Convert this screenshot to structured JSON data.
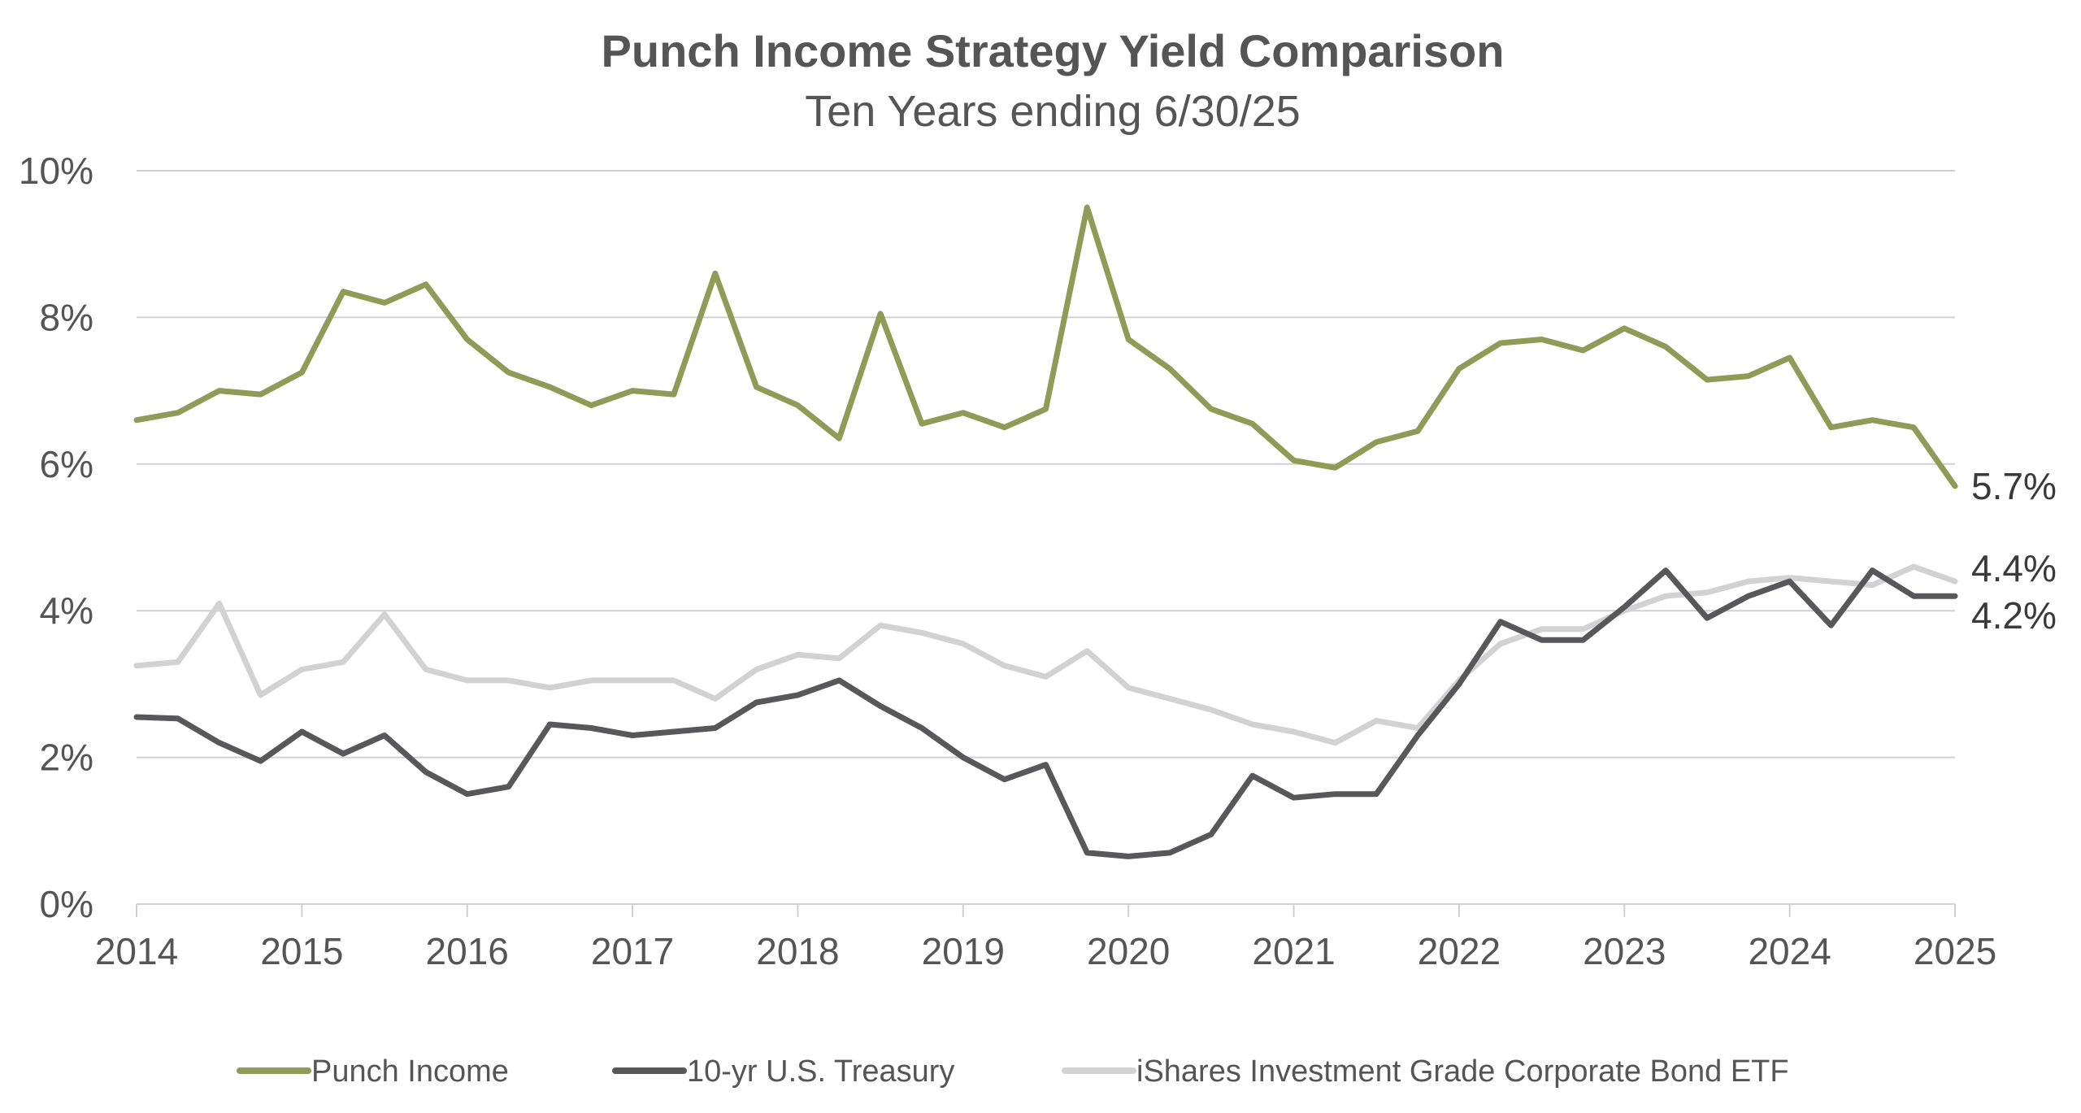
{
  "chart_data": {
    "type": "line",
    "title": "Punch Income Strategy Yield Comparison",
    "subtitle": "Ten Years ending 6/30/25",
    "xlabel": "",
    "ylabel": "",
    "x_ticks": [
      "2014",
      "2015",
      "2016",
      "2017",
      "2018",
      "2019",
      "2020",
      "2021",
      "2022",
      "2023",
      "2024",
      "2025"
    ],
    "y_ticks": [
      "0%",
      "2%",
      "4%",
      "6%",
      "8%",
      "10%"
    ],
    "xlim": [
      2014.0,
      2025.0
    ],
    "ylim": [
      0,
      10
    ],
    "grid": true,
    "legend_position": "bottom",
    "x": [
      2014.0,
      2014.25,
      2014.5,
      2014.75,
      2015.0,
      2015.25,
      2015.5,
      2015.75,
      2016.0,
      2016.25,
      2016.5,
      2016.75,
      2017.0,
      2017.25,
      2017.5,
      2017.75,
      2018.0,
      2018.25,
      2018.5,
      2018.75,
      2019.0,
      2019.25,
      2019.5,
      2019.75,
      2020.0,
      2020.25,
      2020.5,
      2020.75,
      2021.0,
      2021.25,
      2021.5,
      2021.75,
      2022.0,
      2022.25,
      2022.5,
      2022.75,
      2023.0,
      2023.25,
      2023.5,
      2023.75,
      2024.0,
      2024.25,
      2024.5,
      2024.75,
      2025.0
    ],
    "series": [
      {
        "name": "Punch Income",
        "color": "#8f9b57",
        "end_label": "5.7%",
        "values": [
          6.6,
          6.7,
          7.0,
          6.95,
          7.25,
          8.35,
          8.2,
          8.45,
          7.7,
          7.25,
          7.05,
          6.8,
          7.0,
          6.95,
          8.6,
          7.05,
          6.8,
          6.35,
          8.05,
          6.55,
          6.7,
          6.5,
          6.75,
          9.5,
          7.7,
          7.3,
          6.75,
          6.55,
          6.05,
          5.95,
          6.3,
          6.45,
          7.3,
          7.65,
          7.7,
          7.55,
          7.85,
          7.6,
          7.15,
          7.2,
          7.45,
          6.5,
          6.6,
          6.5,
          5.7
        ]
      },
      {
        "name": "10-yr U.S. Treasury",
        "color": "#58585a",
        "end_label": "4.2%",
        "values": [
          2.55,
          2.53,
          2.2,
          1.95,
          2.35,
          2.05,
          2.3,
          1.8,
          1.5,
          1.6,
          2.45,
          2.4,
          2.3,
          2.35,
          2.4,
          2.75,
          2.85,
          3.05,
          2.7,
          2.4,
          2.0,
          1.7,
          1.9,
          0.7,
          0.65,
          0.7,
          0.95,
          1.75,
          1.45,
          1.5,
          1.5,
          2.3,
          3.0,
          3.85,
          3.6,
          3.6,
          4.05,
          4.55,
          3.9,
          4.2,
          4.4,
          3.8,
          4.55,
          4.2,
          4.2
        ]
      },
      {
        "name": "iShares Investment Grade Corporate Bond ETF",
        "color": "#d2d2d2",
        "end_label": "4.4%",
        "values": [
          3.25,
          3.3,
          4.1,
          2.85,
          3.2,
          3.3,
          3.95,
          3.2,
          3.05,
          3.05,
          2.95,
          3.05,
          3.05,
          3.05,
          2.8,
          3.2,
          3.4,
          3.35,
          3.8,
          3.7,
          3.55,
          3.25,
          3.1,
          3.45,
          2.95,
          2.8,
          2.65,
          2.45,
          2.35,
          2.2,
          2.5,
          2.4,
          3.05,
          3.55,
          3.75,
          3.75,
          4.0,
          4.2,
          4.25,
          4.4,
          4.45,
          4.4,
          4.35,
          4.6,
          4.4
        ]
      }
    ]
  }
}
